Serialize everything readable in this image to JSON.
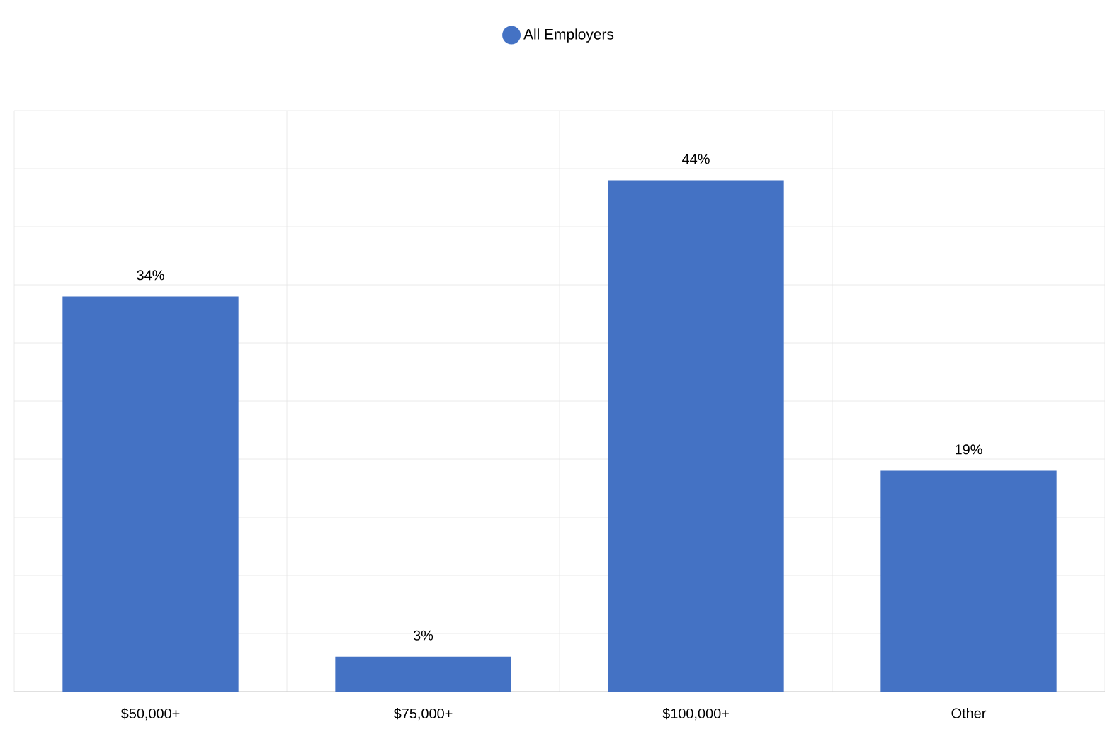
{
  "chart_data": {
    "type": "bar",
    "categories": [
      "$50,000+",
      "$75,000+",
      "$100,000+",
      "Other"
    ],
    "series": [
      {
        "name": "All Employers",
        "color": "#4472c4",
        "values": [
          34,
          3,
          44,
          19
        ],
        "value_labels": [
          "34%",
          "3%",
          "44%",
          "19%"
        ]
      }
    ],
    "ylim": [
      0,
      50
    ],
    "tick_labels": "x",
    "grid": true,
    "legend": "top",
    "marker": "circle"
  }
}
